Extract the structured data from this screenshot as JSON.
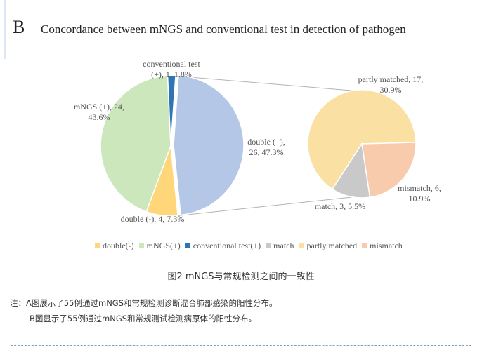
{
  "panel_letter": "B",
  "chart_data": [
    {
      "type": "pie",
      "title": "Concordance between mNGS and conventional test in detection of pathogen",
      "slices": [
        {
          "name": "double (+)",
          "value": 26,
          "percent": "47.3%",
          "color": "#b4c7e7",
          "label_lines": [
            "double (+),",
            "26, 47.3%"
          ]
        },
        {
          "name": "double(-)",
          "value": 4,
          "percent": "7.3%",
          "color": "#ffd77a",
          "label_lines": [
            "double (-), 4, 7.3%"
          ]
        },
        {
          "name": "mNGS(+)",
          "value": 24,
          "percent": "43.6%",
          "color": "#cde7bd",
          "label_lines": [
            "mNGS (+), 24,",
            "43.6%"
          ]
        },
        {
          "name": "conventional test(+)",
          "value": 1,
          "percent": "1.8%",
          "color": "#2e75b6",
          "label_lines": [
            "conventional test",
            "(+), 1, 1.8%"
          ]
        }
      ]
    },
    {
      "type": "pie",
      "breakdown_of": "double (+)",
      "slices": [
        {
          "name": "partly matched",
          "value": 17,
          "percent": "30.9%",
          "color": "#fae0a3",
          "label_lines": [
            "partly matched, 17,",
            "30.9%"
          ]
        },
        {
          "name": "mismatch",
          "value": 6,
          "percent": "10.9%",
          "color": "#f8cbad",
          "label_lines": [
            "mismatch, 6,",
            "10.9%"
          ]
        },
        {
          "name": "match",
          "value": 3,
          "percent": "5.5%",
          "color": "#c9c9c9",
          "label_lines": [
            "match, 3, 5.5%"
          ]
        }
      ]
    }
  ],
  "legend": [
    {
      "label": "double(-)",
      "color": "#ffd77a"
    },
    {
      "label": "mNGS(+)",
      "color": "#cde7bd"
    },
    {
      "label": "conventional test(+)",
      "color": "#2e75b6"
    },
    {
      "label": "match",
      "color": "#c9c9c9"
    },
    {
      "label": "partly matched",
      "color": "#fae0a3"
    },
    {
      "label": "mismatch",
      "color": "#f8cbad"
    }
  ],
  "caption": "图2   mNGS与常规检测之间的一致性",
  "notes": [
    "注：A图展示了55例通过mNGS和常规检测诊断混合肺部感染的阳性分布。",
    "B图显示了55例通过mNGS和常规测试检测病原体的阳性分布。"
  ]
}
